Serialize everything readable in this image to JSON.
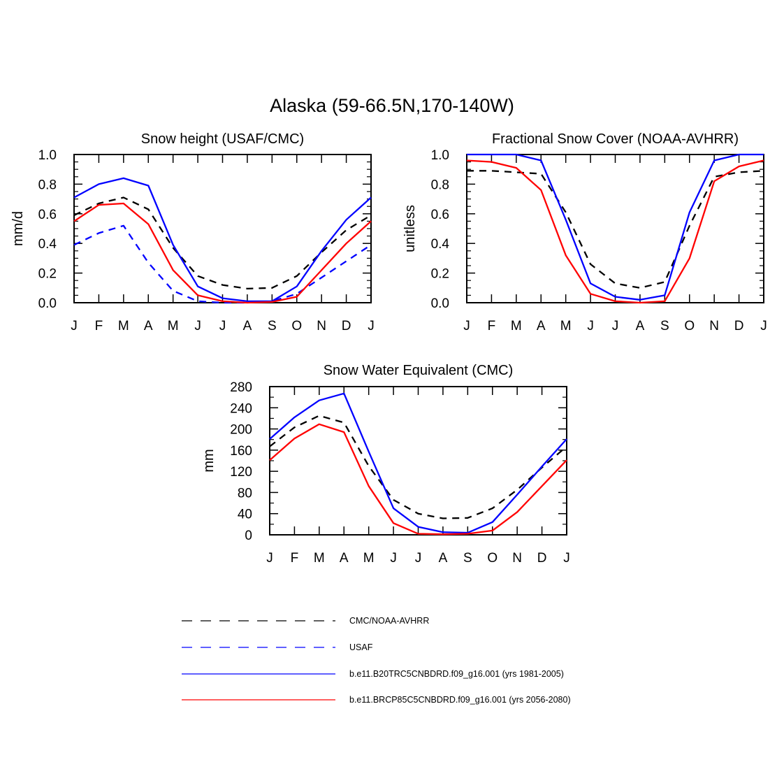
{
  "title": "Alaska (59-66.5N,170-140W)",
  "months": [
    "J",
    "F",
    "M",
    "A",
    "M",
    "J",
    "J",
    "A",
    "S",
    "O",
    "N",
    "D",
    "J"
  ],
  "colors": {
    "cmc_noaa": "#000000",
    "usaf": "#0000ff",
    "b20tr": "#0000ff",
    "rcp85": "#ff0000"
  },
  "legend": [
    {
      "label": "CMC/NOAA-AVHRR",
      "color": "#000000",
      "style": "dashed"
    },
    {
      "label": "USAF",
      "color": "#0000ff",
      "style": "dashed"
    },
    {
      "label": "b.e11.B20TRC5CNBDRD.f09_g16.001 (yrs 1981-2005)",
      "color": "#0000ff",
      "style": "solid"
    },
    {
      "label": "b.e11.BRCP85C5CNBDRD.f09_g16.001 (yrs 2056-2080)",
      "color": "#ff0000",
      "style": "solid"
    }
  ],
  "chart_data": [
    {
      "type": "line",
      "title": "Snow height (USAF/CMC)",
      "ylabel": "mm/d",
      "ylim": [
        0,
        1.0
      ],
      "yticks": [
        "0.0",
        "0.2",
        "0.4",
        "0.6",
        "0.8",
        "1.0"
      ],
      "x": [
        "J",
        "F",
        "M",
        "A",
        "M",
        "J",
        "J",
        "A",
        "S",
        "O",
        "N",
        "D",
        "J"
      ],
      "series": [
        {
          "name": "CMC/NOAA-AVHRR",
          "color": "#000000",
          "style": "dashed",
          "values": [
            0.59,
            0.67,
            0.71,
            0.63,
            0.37,
            0.18,
            0.12,
            0.095,
            0.1,
            0.18,
            0.34,
            0.49,
            0.59
          ]
        },
        {
          "name": "USAF",
          "color": "#0000ff",
          "style": "dashed",
          "values": [
            0.39,
            0.47,
            0.52,
            0.27,
            0.08,
            0.01,
            0.0,
            0.0,
            0.01,
            0.06,
            0.17,
            0.28,
            0.39
          ]
        },
        {
          "name": "b.e11.B20TRC5CNBDRD.f09_g16.001 (yrs 1981-2005)",
          "color": "#0000ff",
          "style": "solid",
          "values": [
            0.71,
            0.8,
            0.84,
            0.79,
            0.39,
            0.11,
            0.03,
            0.01,
            0.01,
            0.11,
            0.35,
            0.56,
            0.71
          ]
        },
        {
          "name": "b.e11.BRCP85C5CNBDRD.f09_g16.001 (yrs 2056-2080)",
          "color": "#ff0000",
          "style": "solid",
          "values": [
            0.55,
            0.66,
            0.67,
            0.53,
            0.22,
            0.05,
            0.01,
            0.0,
            0.005,
            0.04,
            0.22,
            0.4,
            0.55
          ]
        }
      ]
    },
    {
      "type": "line",
      "title": "Fractional Snow Cover (NOAA-AVHRR)",
      "ylabel": "unitless",
      "ylim": [
        0,
        1.0
      ],
      "yticks": [
        "0.0",
        "0.2",
        "0.4",
        "0.6",
        "0.8",
        "1.0"
      ],
      "x": [
        "J",
        "F",
        "M",
        "A",
        "M",
        "J",
        "J",
        "A",
        "S",
        "O",
        "N",
        "D",
        "J"
      ],
      "series": [
        {
          "name": "CMC/NOAA-AVHRR",
          "color": "#000000",
          "style": "dashed",
          "values": [
            0.89,
            0.89,
            0.88,
            0.87,
            0.61,
            0.26,
            0.13,
            0.1,
            0.14,
            0.52,
            0.85,
            0.88,
            0.89
          ]
        },
        {
          "name": "b.e11.B20TRC5CNBDRD.f09_g16.001 (yrs 1981-2005)",
          "color": "#0000ff",
          "style": "solid",
          "values": [
            1.0,
            1.0,
            1.0,
            0.96,
            0.56,
            0.13,
            0.04,
            0.02,
            0.05,
            0.61,
            0.96,
            1.0,
            1.0
          ]
        },
        {
          "name": "b.e11.BRCP85C5CNBDRD.f09_g16.001 (yrs 2056-2080)",
          "color": "#ff0000",
          "style": "solid",
          "values": [
            0.96,
            0.95,
            0.91,
            0.76,
            0.32,
            0.06,
            0.01,
            0.0,
            0.01,
            0.3,
            0.82,
            0.92,
            0.96
          ]
        }
      ]
    },
    {
      "type": "line",
      "title": "Snow Water Equivalent (CMC)",
      "ylabel": "mm",
      "ylim": [
        0,
        280
      ],
      "yticks": [
        "0",
        "40",
        "80",
        "120",
        "160",
        "200",
        "240",
        "280"
      ],
      "x": [
        "J",
        "F",
        "M",
        "A",
        "M",
        "J",
        "J",
        "A",
        "S",
        "O",
        "N",
        "D",
        "J"
      ],
      "series": [
        {
          "name": "CMC/NOAA-AVHRR",
          "color": "#000000",
          "style": "dashed",
          "values": [
            167,
            203,
            225,
            212,
            130,
            66,
            40,
            31,
            32,
            50,
            85,
            127,
            167
          ]
        },
        {
          "name": "b.e11.B20TRC5CNBDRD.f09_g16.001 (yrs 1981-2005)",
          "color": "#0000ff",
          "style": "solid",
          "values": [
            181,
            222,
            254,
            267,
            157,
            50,
            15,
            5,
            4,
            24,
            76,
            129,
            181
          ]
        },
        {
          "name": "b.e11.BRCP85C5CNBDRD.f09_g16.001 (yrs 2056-2080)",
          "color": "#ff0000",
          "style": "solid",
          "values": [
            141,
            182,
            209,
            194,
            92,
            22,
            2,
            1,
            2,
            8,
            43,
            92,
            141
          ]
        }
      ]
    }
  ]
}
